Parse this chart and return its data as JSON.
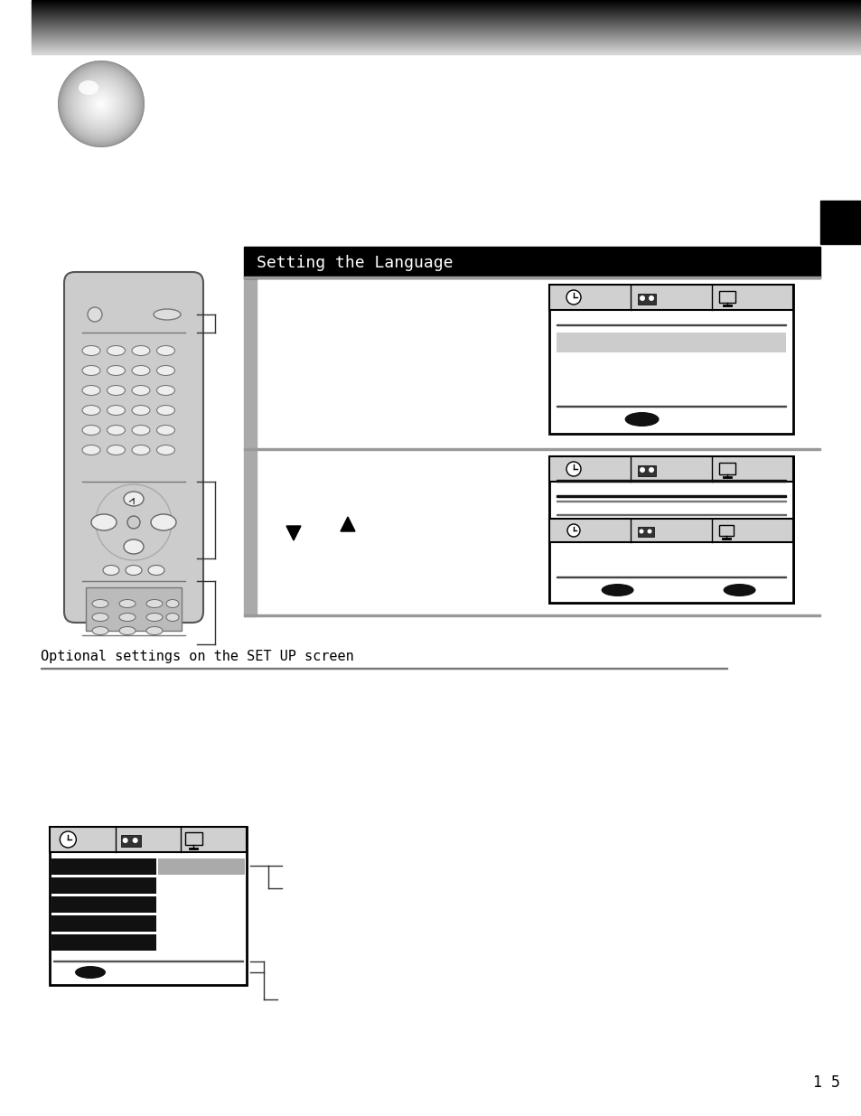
{
  "bg_color": "#ffffff",
  "title": "Setting the Language",
  "optional_text": "Optional settings on the SET UP screen",
  "page_number": "1 5"
}
